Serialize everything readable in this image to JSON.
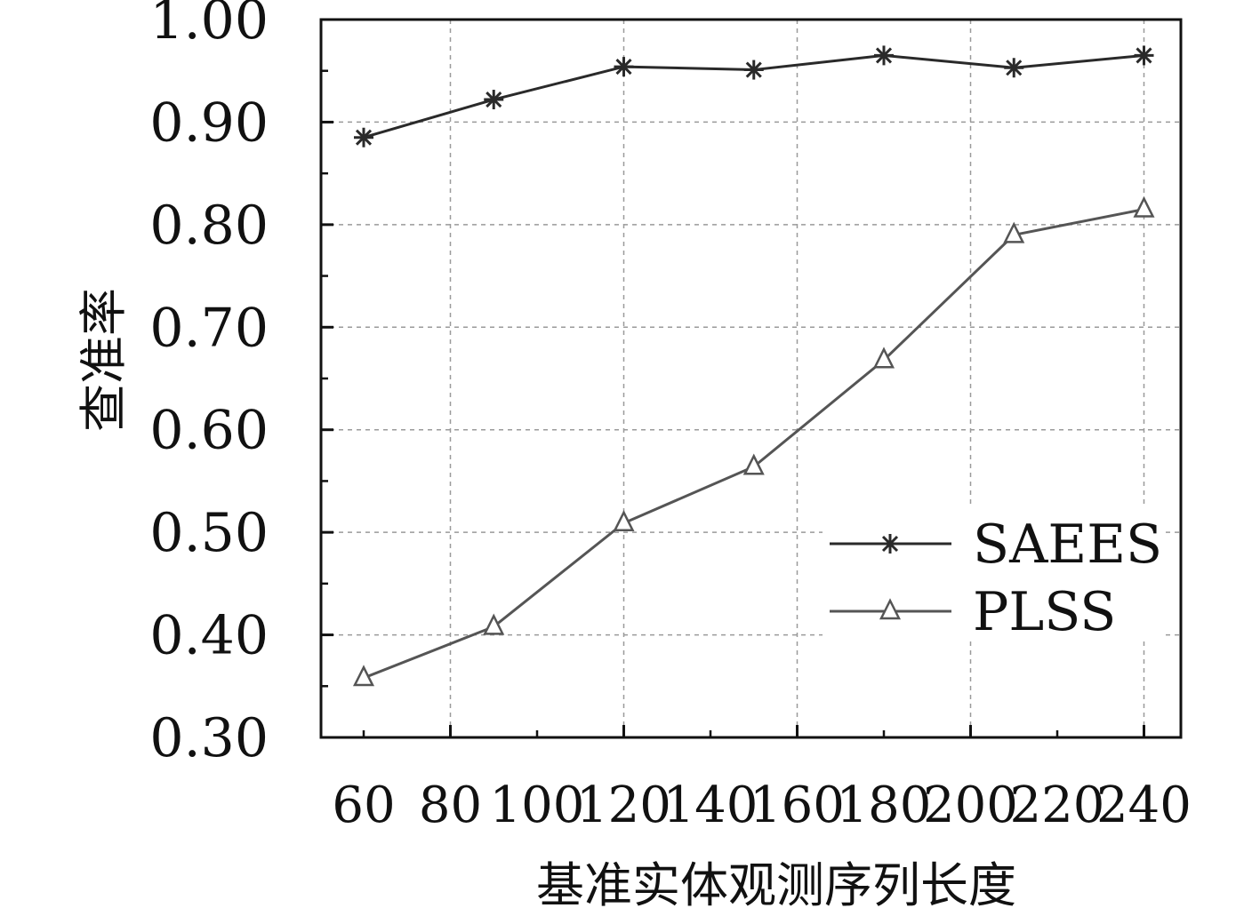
{
  "chart_data": {
    "type": "line",
    "x_ticks": [
      "60",
      "80",
      "100",
      "120",
      "140",
      "160",
      "180",
      "200",
      "220",
      "240"
    ],
    "xlabel": "基准实体观测序列长度",
    "ylabel": "查准率",
    "xlim": [
      60,
      240
    ],
    "ylim": [
      0.3,
      1.0
    ],
    "y_ticks": [
      "0.30",
      "0.40",
      "0.50",
      "0.60",
      "0.70",
      "0.80",
      "0.90",
      "1.00"
    ],
    "grid": true,
    "legend_position": "bottom-right",
    "series": [
      {
        "name": "SAEES",
        "marker": "asterisk",
        "color": "#2a2a2a",
        "x": [
          60,
          90,
          120,
          150,
          180,
          210,
          240
        ],
        "y": [
          0.885,
          0.922,
          0.954,
          0.951,
          0.965,
          0.953,
          0.965
        ]
      },
      {
        "name": "PLSS",
        "marker": "triangle",
        "color": "#555555",
        "x": [
          60,
          90,
          120,
          150,
          180,
          210,
          240
        ],
        "y": [
          0.358,
          0.408,
          0.509,
          0.564,
          0.668,
          0.79,
          0.815
        ]
      }
    ]
  }
}
